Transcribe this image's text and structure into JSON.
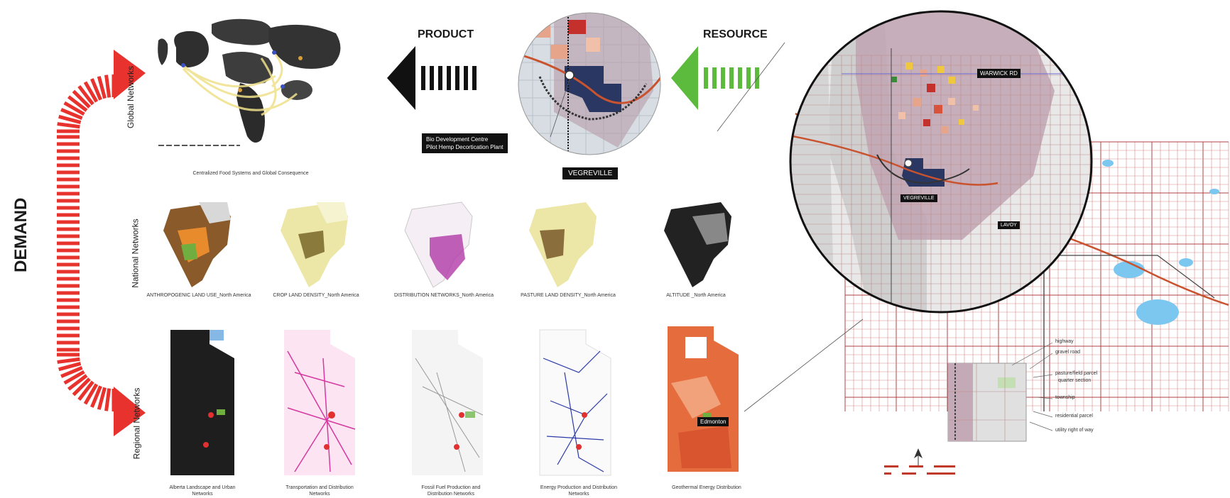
{
  "headings": {
    "demand": "DEMAND",
    "product": "PRODUCT",
    "resource": "RESOURCE"
  },
  "rows": {
    "global": "Global Networks",
    "national": "National Networks",
    "regional": "Regional Networks"
  },
  "global_caption": "Centralized Food Systems and Global Consequence",
  "national_captions": [
    "ANTHROPOGENIC LAND USE_North America",
    "CROP LAND DENSITY_North America",
    "DISTRIBUTION NETWORKS_North America",
    "PASTURE LAND DENSITY_North America",
    "ALTITUDE _North America"
  ],
  "regional_captions": [
    [
      "Alberta Landscape and Urban",
      "Networks"
    ],
    [
      "Transportation and Distribution",
      "Networks"
    ],
    [
      "Fossil Fuel Production and",
      "Distribution Networks"
    ],
    [
      "Energy Production and Distribution",
      "Networks"
    ],
    [
      "Geothermal Energy Distribution",
      ""
    ]
  ],
  "labels": {
    "bio_line1": "Bio Development Centre",
    "bio_line2": "Pilot Hemp Decortication Plant",
    "vegreville": "VEGREVILLE",
    "vegreville_small": "VEGREVILLE",
    "warwick": "WARWICK RD",
    "lavoy": "LAVOY",
    "edmonton": "Edmonton"
  },
  "legend": [
    "highway",
    "gravel road",
    "pasture/field parcel",
    "quarter section",
    "township",
    "residential parcel",
    "utility right of way"
  ],
  "colors": {
    "demand_red": "#e8322e",
    "resource_green": "#5cba3c",
    "product_black": "#111111",
    "parcel_red": "#c0392b"
  }
}
